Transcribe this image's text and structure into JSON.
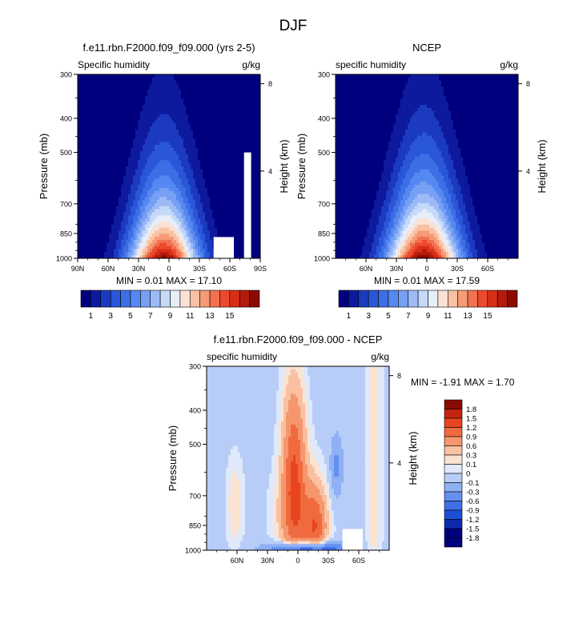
{
  "figure_title": "DJF",
  "palettes": {
    "abs": [
      "#00007e",
      "#0e1a9e",
      "#1c3ac0",
      "#2a56d8",
      "#3d6ee6",
      "#5588f0",
      "#779ff4",
      "#9cbaf6",
      "#c5d9f8",
      "#e6eefa",
      "#fbe1d3",
      "#f9c1a4",
      "#f69b76",
      "#f27250",
      "#ec4a2c",
      "#d82e17",
      "#b51b0a",
      "#8a0a02"
    ],
    "diff": [
      "#00007e",
      "#0e2bb0",
      "#1d4ed8",
      "#3f6fe8",
      "#6590f0",
      "#8fb0f4",
      "#b7cdf7",
      "#dfe9fa",
      "#fbe3d2",
      "#f9c0a1",
      "#f5966c",
      "#f06a40",
      "#e8441e",
      "#c42510",
      "#8a0a02"
    ]
  },
  "chart_data": [
    {
      "type": "heatmap",
      "title": "f.e11.rbn.F2000.f09_f09.000 (yrs 2-5)",
      "left_label": "Specific humidity",
      "right_label": "g/kg",
      "ylabel": "Pressure (mb)",
      "ylabel_right": "Height (km)",
      "x_ticks": [
        "90N",
        "60N",
        "30N",
        "0",
        "30S",
        "60S",
        "90S"
      ],
      "x_ticks_lat": [
        90,
        60,
        30,
        0,
        -30,
        -60,
        -90
      ],
      "xlim": [
        90,
        -90
      ],
      "y_ticks": [
        300,
        400,
        500,
        700,
        850,
        1000
      ],
      "ylim": [
        1000,
        300
      ],
      "y_scale": "log",
      "height_ticks_km": [
        8,
        4
      ],
      "min_label": "MIN =",
      "min": "0.01",
      "max_label": "MAX =",
      "max": "17.10",
      "field": {
        "peak": 17.1,
        "center_lat": 5,
        "width_lat": 28,
        "scale_height": 0.44,
        "min": 0.01
      },
      "missing": [
        {
          "lat_from": -44,
          "lat_to": -64,
          "p_from": 870,
          "p_to": 1000
        },
        {
          "lat_from": -74,
          "lat_to": -81,
          "p_from": 500,
          "p_to": 1000
        }
      ]
    },
    {
      "type": "heatmap",
      "title": "NCEP",
      "left_label": "specific humidity",
      "right_label": "g/kg",
      "ylabel": "Pressure (mb)",
      "ylabel_right": "Height (km)",
      "x_ticks": [
        "60N",
        "30N",
        "0",
        "30S",
        "60S"
      ],
      "x_ticks_lat": [
        60,
        30,
        0,
        -30,
        -60
      ],
      "xlim": [
        90,
        -90
      ],
      "y_ticks": [
        300,
        400,
        500,
        700,
        850,
        1000
      ],
      "ylim": [
        1000,
        300
      ],
      "y_scale": "log",
      "height_ticks_km": [
        8,
        4
      ],
      "min_label": "MIN =",
      "min": "0.01",
      "max_label": "MAX =",
      "max": "17.59",
      "field": {
        "peak": 17.59,
        "center_lat": 3,
        "width_lat": 30,
        "scale_height": 0.46,
        "min": 0.01
      },
      "missing": []
    },
    {
      "type": "heatmap",
      "title": "f.e11.rbn.F2000.f09_f09.000 - NCEP",
      "left_label": "specific humidity",
      "right_label": "g/kg",
      "ylabel": "Pressure (mb)",
      "ylabel_right": "Height (km)",
      "x_ticks": [
        "60N",
        "30N",
        "0",
        "30S",
        "60S"
      ],
      "x_ticks_lat": [
        60,
        30,
        0,
        -30,
        -60
      ],
      "xlim": [
        90,
        -90
      ],
      "y_ticks": [
        300,
        400,
        500,
        700,
        850,
        1000
      ],
      "ylim": [
        1000,
        300
      ],
      "y_scale": "log",
      "height_ticks_km": [
        8,
        4
      ],
      "min_label": "MIN =",
      "min": "-1.91",
      "max_label": "MAX =",
      "max": "1.70",
      "missing": [
        {
          "lat_from": -44,
          "lat_to": -64,
          "p_from": 870,
          "p_to": 1000
        }
      ]
    }
  ],
  "colorbar_abs": {
    "orientation": "horizontal",
    "levels": [
      1,
      2,
      3,
      4,
      5,
      6,
      7,
      8,
      9,
      10,
      11,
      12,
      13,
      14,
      15,
      16,
      17
    ],
    "labels": [
      "1",
      "3",
      "5",
      "7",
      "9",
      "11",
      "13",
      "15"
    ],
    "label_levels": [
      1,
      3,
      5,
      7,
      9,
      11,
      13,
      15
    ]
  },
  "colorbar_diff": {
    "orientation": "vertical",
    "levels": [
      -1.8,
      -1.5,
      -1.2,
      -0.9,
      -0.6,
      -0.3,
      -0.1,
      0,
      0.1,
      0.3,
      0.6,
      0.9,
      1.2,
      1.5,
      1.8
    ],
    "labels": [
      "-1.8",
      "-1.5",
      "-1.2",
      "-0.9",
      "-0.6",
      "-0.3",
      "-0.1",
      "0",
      "0.1",
      "0.3",
      "0.6",
      "0.9",
      "1.2",
      "1.5",
      "1.8"
    ]
  }
}
